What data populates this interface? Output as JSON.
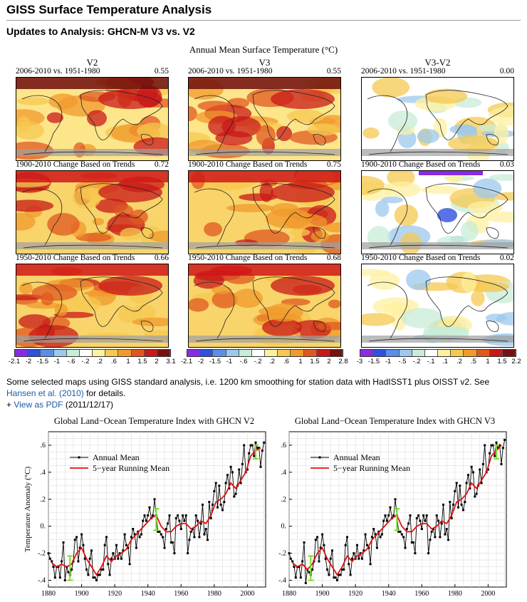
{
  "page": {
    "title": "GISS Surface Temperature Analysis",
    "subtitle": "Updates to Analysis: GHCN-M V3 vs. V2"
  },
  "maps": {
    "title": "Annual Mean Surface Temperature (°C)",
    "columns": [
      {
        "name": "V2",
        "panels": [
          {
            "label": "2006-2010 vs. 1951-1980",
            "value": "0.55"
          },
          {
            "label": "1900-2010 Change Based on Trends",
            "value": "0.72"
          },
          {
            "label": "1950-2010 Change Based on Trends",
            "value": "0.66"
          }
        ],
        "scale": [
          "-2.1",
          "-2",
          "-1.5",
          "-1",
          "-.6",
          "-.2",
          ".2",
          ".6",
          "1",
          "1.5",
          "2",
          "3.1"
        ]
      },
      {
        "name": "V3",
        "panels": [
          {
            "label": "2006-2010 vs. 1951-1980",
            "value": "0.55"
          },
          {
            "label": "1900-2010 Change Based on Trends",
            "value": "0.75"
          },
          {
            "label": "1950-2010 Change Based on Trends",
            "value": "0.68"
          }
        ],
        "scale": [
          "-2.1",
          "-2",
          "-1.5",
          "-1",
          "-.6",
          "-.2",
          ".2",
          ".6",
          "1",
          "1.5",
          "2",
          "2.8"
        ]
      },
      {
        "name": "V3-V2",
        "panels": [
          {
            "label": "2006-2010 vs. 1951-1980",
            "value": "0.00"
          },
          {
            "label": "1900-2010 Change Based on Trends",
            "value": "0.03"
          },
          {
            "label": "1950-2010 Change Based on Trends",
            "value": "0.02"
          }
        ],
        "scale": [
          "-3",
          "-1.5",
          "-1",
          "-.5",
          "-.2",
          "-.1",
          ".1",
          ".2",
          ".5",
          "1",
          "1.5",
          "2.2"
        ]
      }
    ],
    "scale_colors": [
      "#8a2be2",
      "#3050e0",
      "#5b8ee8",
      "#9cc8ec",
      "#c8ecd8",
      "#ffffff",
      "#fff0a0",
      "#f6c850",
      "#f09a2c",
      "#e05820",
      "#c81818",
      "#781010"
    ]
  },
  "note": {
    "text1": "Some selected maps using GISS standard analysis, i.e. 1200 km smoothing for station data with HadISST1 plus OISST v2. See ",
    "link1": "Hansen et al. (2010)",
    "text2": " for details.",
    "plus": "+ ",
    "link2": "View as PDF",
    "date": " (2011/12/17)"
  },
  "chart_data": [
    {
      "type": "line",
      "title": "Global Land−Ocean Temperature Index with GHCN V2",
      "ylabel": "Temperature Anomaly (°C)",
      "xlim": [
        1880,
        2011
      ],
      "ylim": [
        -0.45,
        0.7
      ],
      "xticks": [
        1880,
        1900,
        1920,
        1940,
        1960,
        1980,
        2000
      ],
      "yticks": [
        -0.4,
        -0.2,
        0,
        0.2,
        0.4,
        0.6
      ],
      "ytick_labels": [
        "-.4",
        "-.2",
        "0.",
        ".2",
        ".4",
        ".6"
      ],
      "legend": [
        "Annual Mean",
        "5−year Running Mean"
      ],
      "series": [
        {
          "name": "Annual Mean",
          "x": [
            1880,
            1881,
            1882,
            1883,
            1884,
            1885,
            1886,
            1887,
            1888,
            1889,
            1890,
            1891,
            1892,
            1893,
            1894,
            1895,
            1896,
            1897,
            1898,
            1899,
            1900,
            1901,
            1902,
            1903,
            1904,
            1905,
            1906,
            1907,
            1908,
            1909,
            1910,
            1911,
            1912,
            1913,
            1914,
            1915,
            1916,
            1917,
            1918,
            1919,
            1920,
            1921,
            1922,
            1923,
            1924,
            1925,
            1926,
            1927,
            1928,
            1929,
            1930,
            1931,
            1932,
            1933,
            1934,
            1935,
            1936,
            1937,
            1938,
            1939,
            1940,
            1941,
            1942,
            1943,
            1944,
            1945,
            1946,
            1947,
            1948,
            1949,
            1950,
            1951,
            1952,
            1953,
            1954,
            1955,
            1956,
            1957,
            1958,
            1959,
            1960,
            1961,
            1962,
            1963,
            1964,
            1965,
            1966,
            1967,
            1968,
            1969,
            1970,
            1971,
            1972,
            1973,
            1974,
            1975,
            1976,
            1977,
            1978,
            1979,
            1980,
            1981,
            1982,
            1983,
            1984,
            1985,
            1986,
            1987,
            1988,
            1989,
            1990,
            1991,
            1992,
            1993,
            1994,
            1995,
            1996,
            1997,
            1998,
            1999,
            2000,
            2001,
            2002,
            2003,
            2004,
            2005,
            2006,
            2007,
            2008,
            2009,
            2010
          ],
          "y": [
            -0.2,
            -0.24,
            -0.26,
            -0.3,
            -0.38,
            -0.3,
            -0.3,
            -0.38,
            -0.26,
            -0.12,
            -0.4,
            -0.3,
            -0.34,
            -0.36,
            -0.32,
            -0.26,
            -0.1,
            -0.08,
            -0.26,
            -0.16,
            -0.06,
            -0.14,
            -0.24,
            -0.32,
            -0.36,
            -0.24,
            -0.18,
            -0.38,
            -0.38,
            -0.4,
            -0.36,
            -0.36,
            -0.32,
            -0.32,
            -0.14,
            -0.08,
            -0.28,
            -0.36,
            -0.24,
            -0.2,
            -0.24,
            -0.14,
            -0.24,
            -0.2,
            -0.24,
            -0.18,
            -0.06,
            -0.14,
            -0.16,
            -0.28,
            -0.08,
            -0.02,
            -0.06,
            -0.16,
            -0.04,
            -0.08,
            -0.06,
            0.04,
            0.08,
            0.04,
            0.08,
            0.14,
            0.06,
            0.08,
            0.2,
            0.08,
            -0.04,
            -0.04,
            -0.06,
            -0.08,
            -0.16,
            -0.02,
            0.02,
            0.08,
            -0.12,
            -0.12,
            -0.2,
            0.06,
            0.08,
            0.04,
            -0.02,
            0.08,
            0.04,
            0.08,
            -0.2,
            -0.1,
            -0.04,
            -0.02,
            -0.08,
            0.08,
            0.04,
            -0.08,
            0.02,
            0.16,
            -0.06,
            -0.02,
            -0.1,
            0.18,
            0.06,
            0.16,
            0.26,
            0.32,
            0.14,
            0.3,
            0.16,
            0.12,
            0.18,
            0.32,
            0.38,
            0.28,
            0.44,
            0.4,
            0.22,
            0.24,
            0.3,
            0.42,
            0.32,
            0.46,
            0.6,
            0.4,
            0.42,
            0.54,
            0.6,
            0.6,
            0.52,
            0.62,
            0.58,
            0.58,
            0.44,
            0.56,
            0.62
          ]
        },
        {
          "name": "5−year Running Mean",
          "x": [
            1882,
            1885,
            1888,
            1891,
            1894,
            1897,
            1900,
            1903,
            1906,
            1909,
            1912,
            1915,
            1918,
            1921,
            1924,
            1927,
            1930,
            1933,
            1936,
            1939,
            1942,
            1945,
            1948,
            1951,
            1954,
            1957,
            1960,
            1963,
            1966,
            1969,
            1972,
            1975,
            1978,
            1981,
            1984,
            1987,
            1990,
            1993,
            1996,
            1999,
            2002,
            2005,
            2008
          ],
          "y": [
            -0.27,
            -0.3,
            -0.28,
            -0.3,
            -0.28,
            -0.2,
            -0.16,
            -0.24,
            -0.3,
            -0.36,
            -0.3,
            -0.22,
            -0.26,
            -0.22,
            -0.2,
            -0.17,
            -0.1,
            -0.06,
            -0.02,
            0.02,
            0.06,
            0.08,
            0.0,
            -0.04,
            -0.04,
            0.0,
            0.02,
            0.02,
            -0.02,
            0.0,
            0.04,
            0.02,
            0.08,
            0.18,
            0.2,
            0.24,
            0.32,
            0.28,
            0.34,
            0.4,
            0.52,
            0.56,
            0.58
          ]
        },
        {
          "name": "Uncertainty",
          "x": [
            1893,
            1945,
            2005
          ],
          "y": [
            -0.31,
            0.05,
            0.55
          ],
          "err": [
            0.09,
            0.08,
            0.05
          ]
        }
      ]
    },
    {
      "type": "line",
      "title": "Global Land−Ocean Temperature Index with GHCN V3",
      "ylabel": "",
      "xlim": [
        1880,
        2011
      ],
      "ylim": [
        -0.45,
        0.7
      ],
      "xticks": [
        1880,
        1900,
        1920,
        1940,
        1960,
        1980,
        2000
      ],
      "yticks": [
        -0.4,
        -0.2,
        0,
        0.2,
        0.4,
        0.6
      ],
      "ytick_labels": [
        "-.4",
        "-.2",
        "0.",
        ".2",
        ".4",
        ".6"
      ],
      "legend": [
        "Annual Mean",
        "5−year Running Mean"
      ],
      "series": [
        {
          "name": "Annual Mean",
          "x": [
            1880,
            1881,
            1882,
            1883,
            1884,
            1885,
            1886,
            1887,
            1888,
            1889,
            1890,
            1891,
            1892,
            1893,
            1894,
            1895,
            1896,
            1897,
            1898,
            1899,
            1900,
            1901,
            1902,
            1903,
            1904,
            1905,
            1906,
            1907,
            1908,
            1909,
            1910,
            1911,
            1912,
            1913,
            1914,
            1915,
            1916,
            1917,
            1918,
            1919,
            1920,
            1921,
            1922,
            1923,
            1924,
            1925,
            1926,
            1927,
            1928,
            1929,
            1930,
            1931,
            1932,
            1933,
            1934,
            1935,
            1936,
            1937,
            1938,
            1939,
            1940,
            1941,
            1942,
            1943,
            1944,
            1945,
            1946,
            1947,
            1948,
            1949,
            1950,
            1951,
            1952,
            1953,
            1954,
            1955,
            1956,
            1957,
            1958,
            1959,
            1960,
            1961,
            1962,
            1963,
            1964,
            1965,
            1966,
            1967,
            1968,
            1969,
            1970,
            1971,
            1972,
            1973,
            1974,
            1975,
            1976,
            1977,
            1978,
            1979,
            1980,
            1981,
            1982,
            1983,
            1984,
            1985,
            1986,
            1987,
            1988,
            1989,
            1990,
            1991,
            1992,
            1993,
            1994,
            1995,
            1996,
            1997,
            1998,
            1999,
            2000,
            2001,
            2002,
            2003,
            2004,
            2005,
            2006,
            2007,
            2008,
            2009,
            2010
          ],
          "y": [
            -0.2,
            -0.24,
            -0.26,
            -0.3,
            -0.38,
            -0.3,
            -0.3,
            -0.38,
            -0.26,
            -0.12,
            -0.42,
            -0.32,
            -0.34,
            -0.36,
            -0.32,
            -0.26,
            -0.1,
            -0.08,
            -0.26,
            -0.16,
            -0.06,
            -0.14,
            -0.24,
            -0.32,
            -0.36,
            -0.24,
            -0.18,
            -0.38,
            -0.38,
            -0.4,
            -0.36,
            -0.36,
            -0.32,
            -0.32,
            -0.14,
            -0.08,
            -0.28,
            -0.36,
            -0.24,
            -0.2,
            -0.24,
            -0.14,
            -0.24,
            -0.2,
            -0.24,
            -0.18,
            -0.06,
            -0.14,
            -0.16,
            -0.28,
            -0.08,
            -0.02,
            -0.06,
            -0.16,
            -0.04,
            -0.08,
            -0.06,
            0.04,
            0.08,
            0.04,
            0.08,
            0.14,
            0.06,
            0.08,
            0.2,
            0.08,
            -0.04,
            -0.04,
            -0.06,
            -0.08,
            -0.16,
            -0.02,
            0.02,
            0.08,
            -0.12,
            -0.12,
            -0.2,
            0.06,
            0.08,
            0.04,
            -0.02,
            0.08,
            0.04,
            0.08,
            -0.2,
            -0.1,
            -0.04,
            -0.02,
            -0.08,
            0.08,
            0.04,
            -0.08,
            0.02,
            0.16,
            -0.06,
            -0.02,
            -0.1,
            0.18,
            0.06,
            0.16,
            0.26,
            0.32,
            0.14,
            0.3,
            0.16,
            0.12,
            0.18,
            0.32,
            0.38,
            0.28,
            0.44,
            0.4,
            0.22,
            0.24,
            0.3,
            0.42,
            0.32,
            0.46,
            0.6,
            0.4,
            0.42,
            0.54,
            0.6,
            0.6,
            0.52,
            0.62,
            0.58,
            0.6,
            0.46,
            0.58,
            0.64
          ]
        },
        {
          "name": "5−year Running Mean",
          "x": [
            1882,
            1885,
            1888,
            1891,
            1894,
            1897,
            1900,
            1903,
            1906,
            1909,
            1912,
            1915,
            1918,
            1921,
            1924,
            1927,
            1930,
            1933,
            1936,
            1939,
            1942,
            1945,
            1948,
            1951,
            1954,
            1957,
            1960,
            1963,
            1966,
            1969,
            1972,
            1975,
            1978,
            1981,
            1984,
            1987,
            1990,
            1993,
            1996,
            1999,
            2002,
            2005,
            2008
          ],
          "y": [
            -0.27,
            -0.3,
            -0.28,
            -0.32,
            -0.28,
            -0.2,
            -0.16,
            -0.24,
            -0.3,
            -0.36,
            -0.3,
            -0.22,
            -0.26,
            -0.22,
            -0.2,
            -0.17,
            -0.1,
            -0.06,
            -0.02,
            0.02,
            0.06,
            0.08,
            0.0,
            -0.04,
            -0.04,
            0.0,
            0.02,
            0.02,
            -0.02,
            0.0,
            0.04,
            0.02,
            0.08,
            0.18,
            0.2,
            0.24,
            0.32,
            0.28,
            0.34,
            0.4,
            0.52,
            0.56,
            0.6
          ]
        },
        {
          "name": "Uncertainty",
          "x": [
            1893,
            1945,
            2005
          ],
          "y": [
            -0.31,
            0.05,
            0.55
          ],
          "err": [
            0.09,
            0.08,
            0.05
          ]
        }
      ]
    }
  ]
}
